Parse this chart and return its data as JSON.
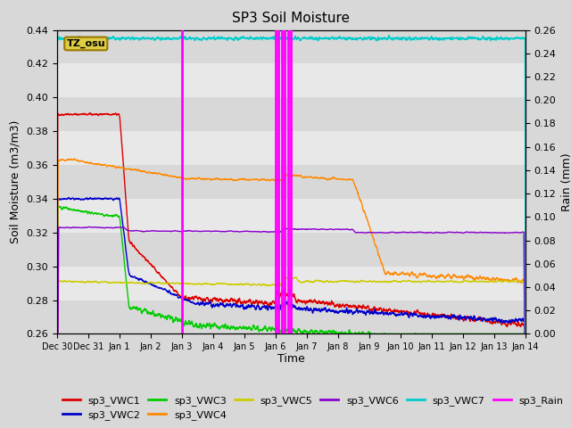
{
  "title": "SP3 Soil Moisture",
  "ylabel_left": "Soil Moisture (m3/m3)",
  "ylabel_right": "Rain (mm)",
  "xlabel": "Time",
  "ylim_left": [
    0.26,
    0.44
  ],
  "ylim_right": [
    0.0,
    0.26
  ],
  "background_color": "#d8d8d8",
  "plot_bg_color": "#d8d8d8",
  "band_colors": [
    "#d8d8d8",
    "#e8e8e8"
  ],
  "colors": {
    "sp3_VWC1": "#dd0000",
    "sp3_VWC2": "#0000cc",
    "sp3_VWC3": "#00cc00",
    "sp3_VWC4": "#ff8800",
    "sp3_VWC5": "#cccc00",
    "sp3_VWC6": "#8800cc",
    "sp3_VWC7": "#00cccc",
    "sp3_Rain": "#ff00ff"
  },
  "rain_spikes": [
    4.0,
    7.0,
    7.1,
    7.2,
    7.3,
    7.4,
    7.5
  ],
  "tick_labels": [
    "Dec 30",
    "Dec 31",
    "Jan 1",
    "Jan 2",
    "Jan 3",
    "Jan 4",
    "Jan 5",
    "Jan 6",
    "Jan 7",
    "Jan 8",
    "Jan 9",
    "Jan 10",
    "Jan 11",
    "Jan 12",
    "Jan 13",
    "Jan 14"
  ],
  "legend_entries": [
    [
      "sp3_VWC1",
      "sp3_VWC1"
    ],
    [
      "sp3_VWC2",
      "sp3_VWC2"
    ],
    [
      "sp3_VWC3",
      "sp3_VWC3"
    ],
    [
      "sp3_VWC4",
      "sp3_VWC4"
    ],
    [
      "sp3_VWC5",
      "sp3_VWC5"
    ],
    [
      "sp3_VWC6",
      "sp3_VWC6"
    ],
    [
      "sp3_VWC7",
      "sp3_VWC7"
    ],
    [
      "sp3_Rain",
      "sp3_Rain"
    ]
  ]
}
